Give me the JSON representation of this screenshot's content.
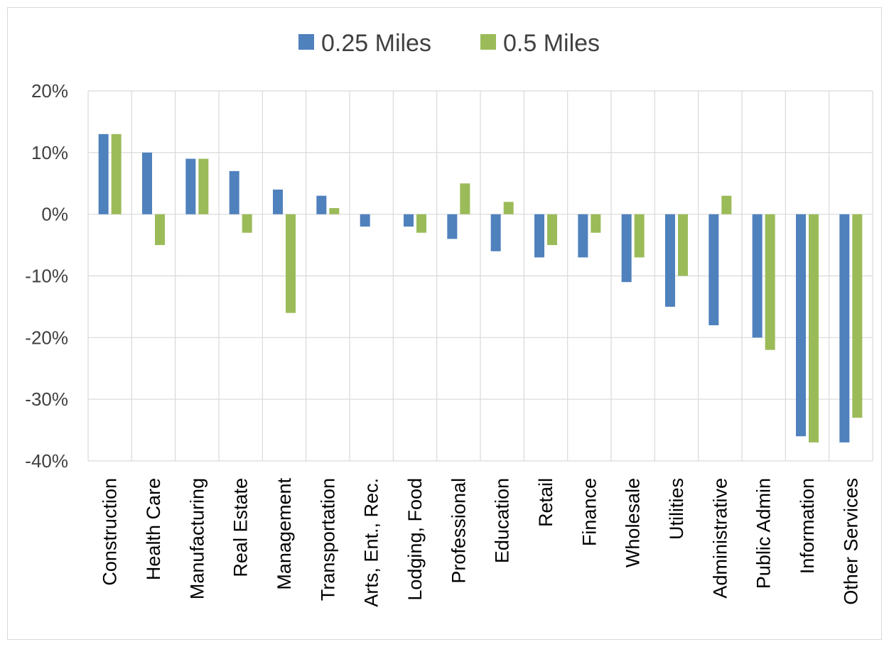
{
  "chart_data": {
    "type": "bar",
    "title": "",
    "xlabel": "",
    "ylabel": "",
    "ylim": [
      -40,
      20
    ],
    "yticks": [
      "20%",
      "10%",
      "0%",
      "-10%",
      "-20%",
      "-30%",
      "-40%"
    ],
    "ytick_values": [
      20,
      10,
      0,
      -10,
      -20,
      -30,
      -40
    ],
    "grid": true,
    "legend_position": "top",
    "categories": [
      "Construction",
      "Health Care",
      "Manufacturing",
      "Real Estate",
      "Management",
      "Transportation",
      "Arts, Ent., Rec.",
      "Lodging, Food",
      "Professional",
      "Education",
      "Retail",
      "Finance",
      "Wholesale",
      "Utilities",
      "Administrative",
      "Public Admin",
      "Information",
      "Other Services"
    ],
    "series": [
      {
        "name": "0.25 Miles",
        "color": "#4f81bd",
        "values": [
          13,
          10,
          9,
          7,
          4,
          3,
          -2,
          -2,
          -4,
          -6,
          -7,
          -7,
          -11,
          -15,
          -18,
          -20,
          -36,
          -37
        ]
      },
      {
        "name": "0.5 Miles",
        "color": "#9bbb59",
        "values": [
          13,
          -5,
          9,
          -3,
          -16,
          1,
          0,
          -3,
          5,
          2,
          -5,
          -3,
          -7,
          -10,
          3,
          -22,
          -37,
          -33
        ]
      }
    ]
  }
}
